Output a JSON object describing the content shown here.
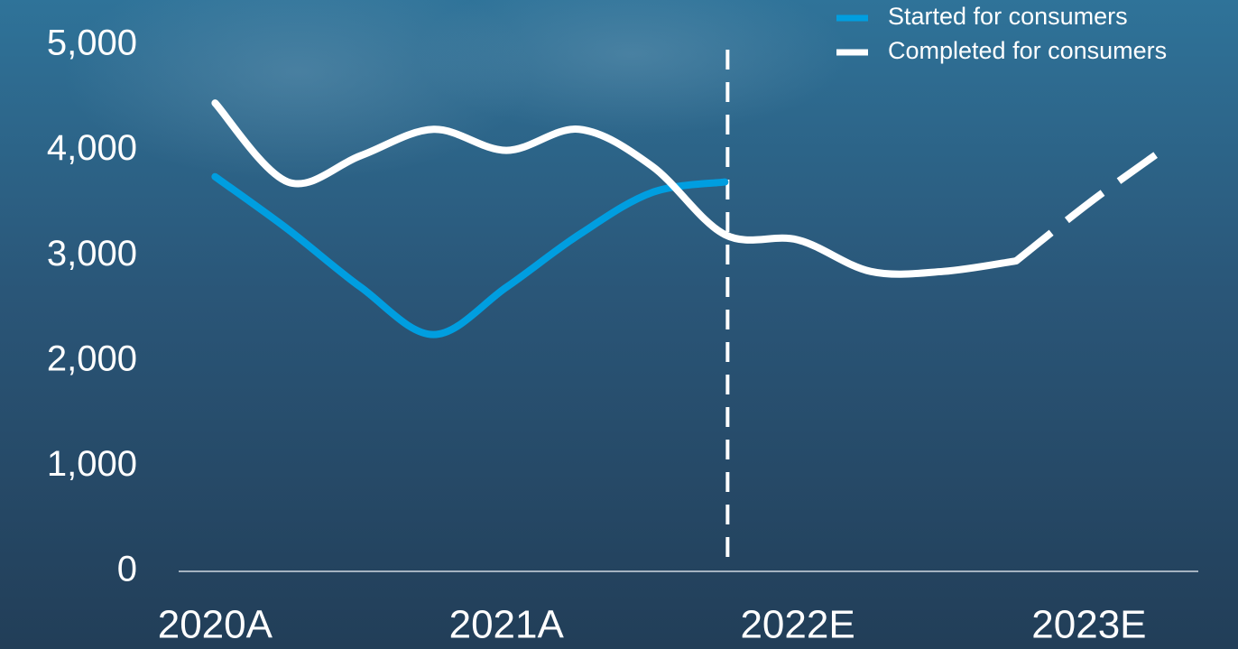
{
  "chart_data": {
    "type": "line",
    "categories": [
      "2020A",
      null,
      null,
      null,
      "2021A",
      null,
      null,
      null,
      "2022E",
      null,
      null,
      null,
      "2023E",
      null
    ],
    "series": [
      {
        "name": "Started for consumers",
        "color": "#009ee0",
        "values": [
          3750,
          3250,
          2700,
          2250,
          2700,
          3200,
          3600,
          3700,
          null,
          null,
          null,
          null,
          null,
          null
        ]
      },
      {
        "name": "Completed for consumers",
        "color": "#ffffff",
        "values": [
          4450,
          3700,
          3950,
          4200,
          4000,
          4200,
          3850,
          3200,
          3150,
          2850,
          2850,
          2950,
          3500,
          4000
        ],
        "dash_from": 11
      }
    ],
    "ylim": [
      0,
      5000
    ],
    "yticks": [
      0,
      {
        "value": 1000,
        "label": "1,000"
      },
      {
        "value": 2000,
        "label": "2,000"
      },
      {
        "value": 3000,
        "label": "3,000"
      },
      {
        "value": 4000,
        "label": "4,000"
      },
      {
        "value": 5000,
        "label": "5,000"
      }
    ],
    "divider_at": 7,
    "grid": false,
    "legend": "top-right"
  }
}
